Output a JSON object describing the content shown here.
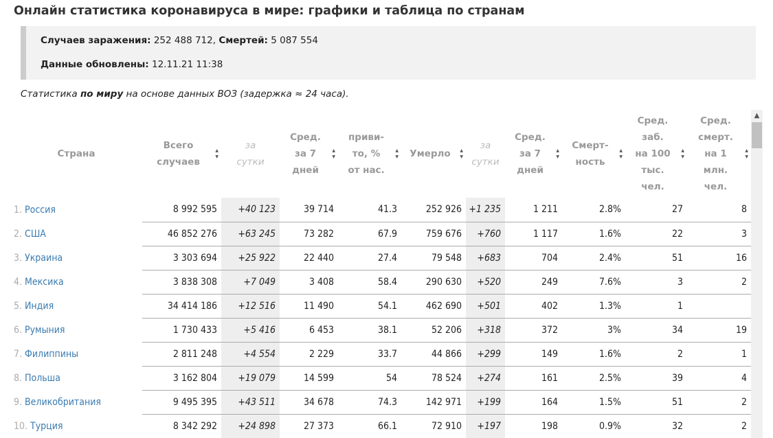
{
  "title": "Онлайн статистика коронавируса в мире: графики и таблица по странам",
  "summary": {
    "cases_label": "Случаев заражения:",
    "cases_value": "252 488 712,",
    "deaths_label": "Смертей:",
    "deaths_value": "5 087 554",
    "updated_label": "Данные обновлены:",
    "updated_value": "12.11.21 11:38"
  },
  "note": {
    "pre": "Статистика ",
    "bold": "по миру",
    "post": " на основе данных ВОЗ (задержка ≈ 24 часа)."
  },
  "columns": [
    "Страна",
    "Всего случаев",
    "за сутки",
    "Сред. за 7 дней",
    "приви-то, % от нас.",
    "Умерло",
    "за сутки",
    "Сред. за 7 дней",
    "Смерт-ность",
    "Сред. заб. на 100 тыс. чел.",
    "Сред. смерт. на 1 млн. чел."
  ],
  "header_html": [
    [
      "Страна"
    ],
    [
      "Всего",
      "случаев"
    ],
    [
      "за",
      "сутки"
    ],
    [
      "Сред.",
      "за 7",
      "дней"
    ],
    [
      "приви-",
      "то, %",
      "от нас."
    ],
    [
      "Умерло"
    ],
    [
      "за",
      "сутки"
    ],
    [
      "Сред.",
      "за 7",
      "дней"
    ],
    [
      "Смерт-",
      "ность"
    ],
    [
      "Сред.",
      "заб.",
      "на 100",
      "тыс.",
      "чел."
    ],
    [
      "Сред.",
      "смерт.",
      "на 1",
      "млн.",
      "чел."
    ]
  ],
  "rows": [
    [
      "1.",
      "Россия",
      "8 992 595",
      "+40 123",
      "39 714",
      "41.3",
      "252 926",
      "+1 235",
      "1 211",
      "2.8%",
      "27",
      "8"
    ],
    [
      "2.",
      "США",
      "46 852 276",
      "+63 245",
      "73 282",
      "67.9",
      "759 676",
      "+760",
      "1 117",
      "1.6%",
      "22",
      "3"
    ],
    [
      "3.",
      "Украина",
      "3 303 694",
      "+25 922",
      "22 440",
      "27.4",
      "79 548",
      "+683",
      "704",
      "2.4%",
      "51",
      "16"
    ],
    [
      "4.",
      "Мексика",
      "3 838 308",
      "+7 049",
      "3 408",
      "58.4",
      "290 630",
      "+520",
      "249",
      "7.6%",
      "3",
      "2"
    ],
    [
      "5.",
      "Индия",
      "34 414 186",
      "+12 516",
      "11 490",
      "54.1",
      "462 690",
      "+501",
      "402",
      "1.3%",
      "1",
      ""
    ],
    [
      "6.",
      "Румыния",
      "1 730 433",
      "+5 416",
      "6 453",
      "38.1",
      "52 206",
      "+318",
      "372",
      "3%",
      "34",
      "19"
    ],
    [
      "7.",
      "Филиппины",
      "2 811 248",
      "+4 554",
      "2 229",
      "33.7",
      "44 866",
      "+299",
      "149",
      "1.6%",
      "2",
      "1"
    ],
    [
      "8.",
      "Польша",
      "3 162 804",
      "+19 079",
      "14 599",
      "54",
      "78 524",
      "+274",
      "161",
      "2.5%",
      "39",
      "4"
    ],
    [
      "9.",
      "Великобритания",
      "9 495 395",
      "+43 511",
      "34 678",
      "74.3",
      "142 971",
      "+199",
      "164",
      "1.5%",
      "51",
      "2"
    ],
    [
      "10.",
      "Турция",
      "8 342 292",
      "+24 898",
      "27 373",
      "66.1",
      "72 910",
      "+197",
      "198",
      "0.9%",
      "32",
      "2"
    ]
  ]
}
